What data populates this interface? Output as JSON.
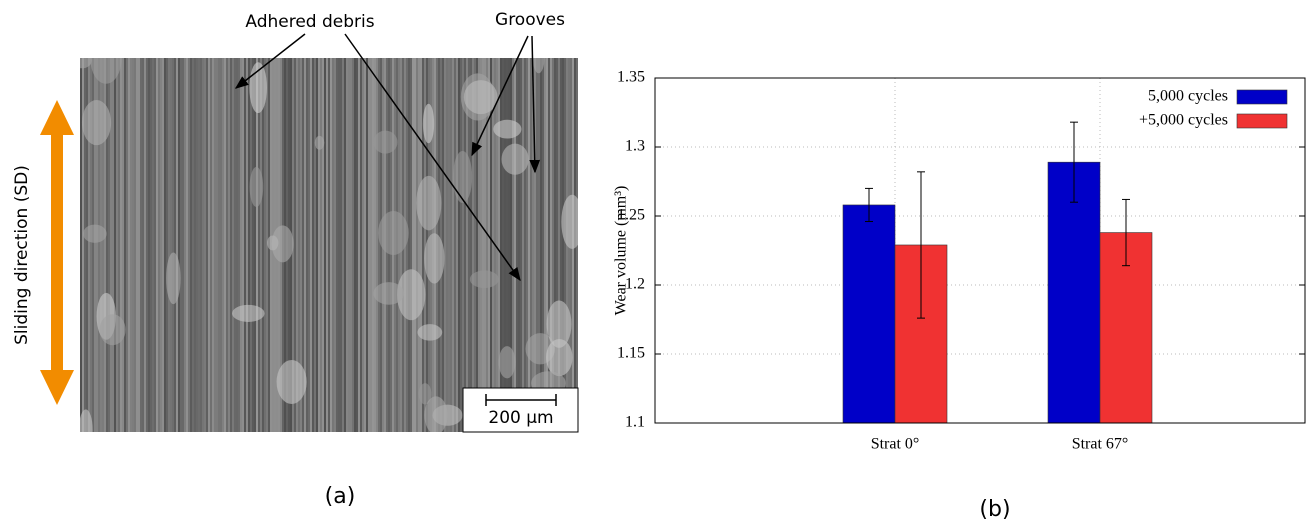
{
  "panel_a": {
    "annotations": [
      "Adhered debris",
      "Grooves"
    ],
    "sliding_direction": "Sliding direction (SD)",
    "scale_bar": "200 µm",
    "label": "(a)"
  },
  "chart_data": {
    "type": "bar",
    "label": "(b)",
    "y_label": "Wear volume (mm³)",
    "categories": [
      "Strat 0°",
      "Strat 67°"
    ],
    "series": [
      {
        "name": "5,000 cycles",
        "color": "#0000c8",
        "values": [
          1.258,
          1.289
        ],
        "errors": [
          0.012,
          0.029
        ]
      },
      {
        "name": "+5,000 cycles",
        "color": "#f03232",
        "values": [
          1.229,
          1.238
        ],
        "errors": [
          0.053,
          0.024
        ]
      }
    ],
    "ylim": [
      1.1,
      1.35
    ],
    "yticks": [
      1.1,
      1.15,
      1.2,
      1.25,
      1.3,
      1.35
    ],
    "grid": true,
    "legend": "top-right"
  }
}
